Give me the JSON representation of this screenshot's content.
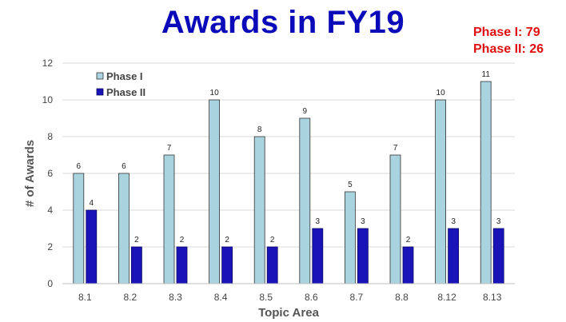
{
  "title": "Awards in FY19",
  "summary": [
    "Phase I: 79",
    "Phase II: 26"
  ],
  "colors": {
    "title": "#0a0ab8",
    "summary": "#e01010",
    "phase1_fill": "#a9d3de",
    "phase1_stroke": "#333333",
    "phase2_fill": "#1a13b8",
    "phase2_stroke": "#0a0a60",
    "grid": "#d9d9d9"
  },
  "chart_data": {
    "type": "bar",
    "title": "Awards in FY19",
    "xlabel": "Topic Area",
    "ylabel": "# of Awards",
    "ylim": [
      0,
      12
    ],
    "yticks": [
      "0",
      "2",
      "4",
      "6",
      "8",
      "10",
      "12"
    ],
    "grid": true,
    "legend_position": "top-left",
    "categories": [
      "8.1",
      "8.2",
      "8.3",
      "8.4",
      "8.5",
      "8.6",
      "8.7",
      "8.8",
      "8.12",
      "8.13"
    ],
    "series": [
      {
        "name": "Phase I",
        "values": [
          6,
          6,
          7,
          10,
          8,
          9,
          5,
          7,
          10,
          11
        ]
      },
      {
        "name": "Phase II",
        "values": [
          4,
          2,
          2,
          2,
          2,
          3,
          3,
          2,
          3,
          3
        ]
      }
    ]
  }
}
